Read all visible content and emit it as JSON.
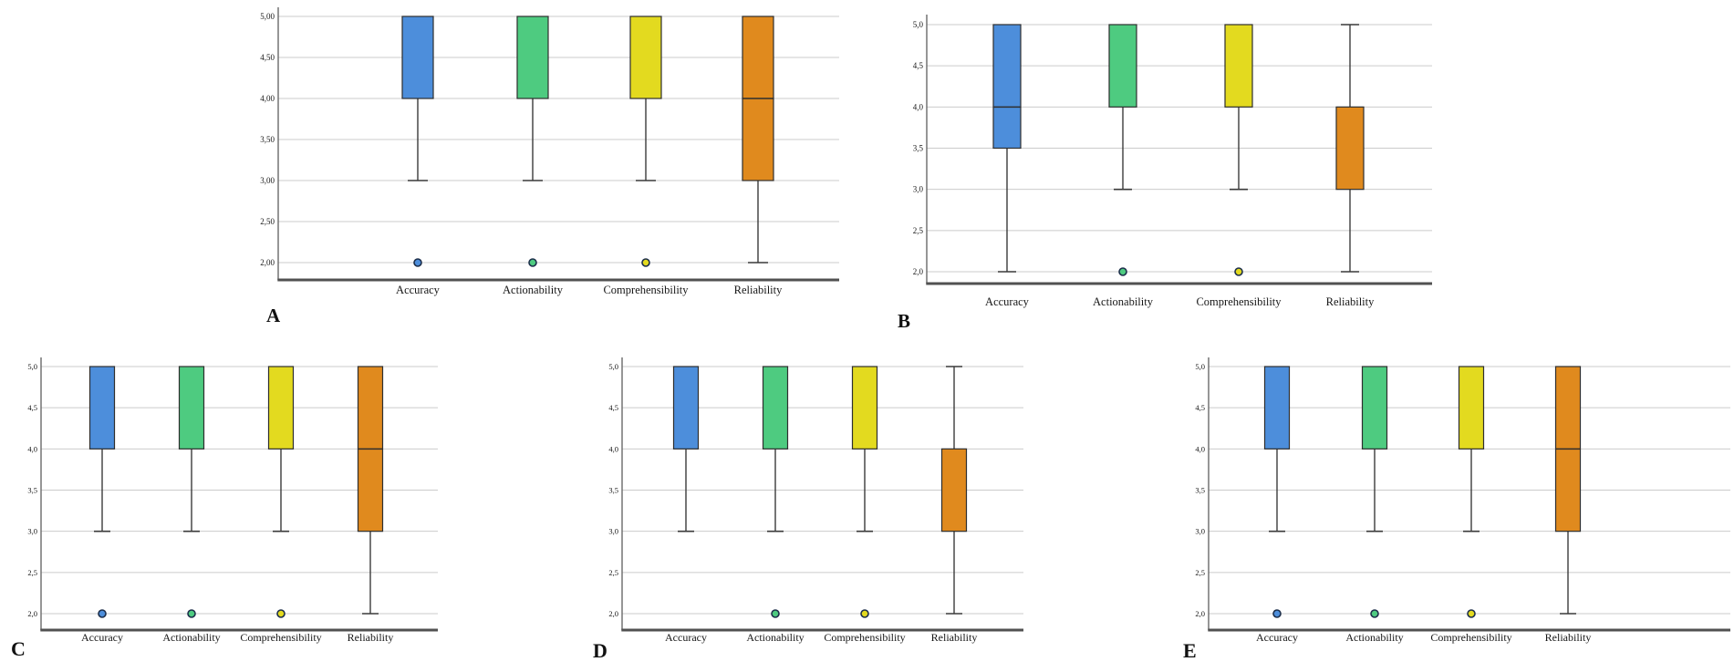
{
  "figure": {
    "description": "Five SPSS-style box plot panels (A-E) rating Accuracy, Actionability, Comprehensibility and Reliability on a 2-to-5 scale",
    "categories": [
      "Accuracy",
      "Actionability",
      "Comprehensibility",
      "Reliability"
    ],
    "colors": {
      "accuracy_blue": "#4d8edb",
      "actionability_green": "#4ecb80",
      "comprehensibility_yellow": "#e3da1f",
      "reliability_orange": "#e08a1e",
      "gridline": "#cbcbcb",
      "axis": "#515151",
      "outlier_ring": "#1c2e4a"
    }
  },
  "chart_data": [
    {
      "type": "box",
      "panel": "A",
      "title": "",
      "xlabel": "",
      "ylabel": "",
      "ylim": [
        2.0,
        5.0
      ],
      "grid": true,
      "categories": [
        "Accuracy",
        "Actionability",
        "Comprehensibility",
        "Reliability"
      ],
      "y_tick_labels": [
        "5,00",
        "4,50",
        "4,00",
        "3,50",
        "3,00",
        "2,50",
        "2,00"
      ],
      "series": [
        {
          "name": "Accuracy",
          "color": "#4d8edb",
          "q1": 4.0,
          "median": null,
          "q3": 5.0,
          "whisker_low": 3.0,
          "whisker_high": null,
          "outliers": [
            2.0
          ]
        },
        {
          "name": "Actionability",
          "color": "#4ecb80",
          "q1": 4.0,
          "median": null,
          "q3": 5.0,
          "whisker_low": 3.0,
          "whisker_high": null,
          "outliers": [
            2.0
          ]
        },
        {
          "name": "Comprehensibility",
          "color": "#e3da1f",
          "q1": 4.0,
          "median": null,
          "q3": 5.0,
          "whisker_low": 3.0,
          "whisker_high": null,
          "outliers": [
            2.0
          ]
        },
        {
          "name": "Reliability",
          "color": "#e08a1e",
          "q1": 3.0,
          "median": 4.0,
          "q3": 5.0,
          "whisker_low": 2.0,
          "whisker_high": null,
          "outliers": []
        }
      ]
    },
    {
      "type": "box",
      "panel": "B",
      "title": "",
      "xlabel": "",
      "ylabel": "",
      "ylim": [
        2.0,
        5.0
      ],
      "grid": true,
      "categories": [
        "Accuracy",
        "Actionability",
        "Comprehensibility",
        "Reliability"
      ],
      "y_tick_labels": [
        "5,0",
        "4,5",
        "4,0",
        "3,5",
        "3,0",
        "2,5",
        "2,0"
      ],
      "series": [
        {
          "name": "Accuracy",
          "color": "#4d8edb",
          "q1": 3.5,
          "median": 4.0,
          "q3": 5.0,
          "whisker_low": 2.0,
          "whisker_high": null,
          "outliers": []
        },
        {
          "name": "Actionability",
          "color": "#4ecb80",
          "q1": 4.0,
          "median": null,
          "q3": 5.0,
          "whisker_low": 3.0,
          "whisker_high": null,
          "outliers": [
            2.0
          ]
        },
        {
          "name": "Comprehensibility",
          "color": "#e3da1f",
          "q1": 4.0,
          "median": null,
          "q3": 5.0,
          "whisker_low": 3.0,
          "whisker_high": null,
          "outliers": [
            2.0
          ]
        },
        {
          "name": "Reliability",
          "color": "#e08a1e",
          "q1": 3.0,
          "median": null,
          "q3": 4.0,
          "whisker_low": 2.0,
          "whisker_high": 5.0,
          "outliers": []
        }
      ]
    },
    {
      "type": "box",
      "panel": "C",
      "title": "",
      "xlabel": "",
      "ylabel": "",
      "ylim": [
        2.0,
        5.0
      ],
      "grid": true,
      "categories": [
        "Accuracy",
        "Actionability",
        "Comprehensibility",
        "Reliability"
      ],
      "y_tick_labels": [
        "5,0",
        "4,5",
        "4,0",
        "3,5",
        "3,0",
        "2,5",
        "2,0"
      ],
      "series": [
        {
          "name": "Accuracy",
          "color": "#4d8edb",
          "q1": 4.0,
          "median": null,
          "q3": 5.0,
          "whisker_low": 3.0,
          "whisker_high": null,
          "outliers": [
            2.0
          ]
        },
        {
          "name": "Actionability",
          "color": "#4ecb80",
          "q1": 4.0,
          "median": null,
          "q3": 5.0,
          "whisker_low": 3.0,
          "whisker_high": null,
          "outliers": [
            2.0
          ]
        },
        {
          "name": "Comprehensibility",
          "color": "#e3da1f",
          "q1": 4.0,
          "median": null,
          "q3": 5.0,
          "whisker_low": 3.0,
          "whisker_high": null,
          "outliers": [
            2.0
          ]
        },
        {
          "name": "Reliability",
          "color": "#e08a1e",
          "q1": 3.0,
          "median": 4.0,
          "q3": 5.0,
          "whisker_low": 2.0,
          "whisker_high": null,
          "outliers": []
        }
      ]
    },
    {
      "type": "box",
      "panel": "D",
      "title": "",
      "xlabel": "",
      "ylabel": "",
      "ylim": [
        2.0,
        5.0
      ],
      "grid": true,
      "categories": [
        "Accuracy",
        "Actionability",
        "Comprehensibility",
        "Reliability"
      ],
      "y_tick_labels": [
        "5,0",
        "4,5",
        "4,0",
        "3,5",
        "3,0",
        "2,5",
        "2,0"
      ],
      "series": [
        {
          "name": "Accuracy",
          "color": "#4d8edb",
          "q1": 4.0,
          "median": null,
          "q3": 5.0,
          "whisker_low": 3.0,
          "whisker_high": null,
          "outliers": []
        },
        {
          "name": "Actionability",
          "color": "#4ecb80",
          "q1": 4.0,
          "median": null,
          "q3": 5.0,
          "whisker_low": 3.0,
          "whisker_high": null,
          "outliers": [
            2.0
          ]
        },
        {
          "name": "Comprehensibility",
          "color": "#e3da1f",
          "q1": 4.0,
          "median": null,
          "q3": 5.0,
          "whisker_low": 3.0,
          "whisker_high": null,
          "outliers": [
            2.0
          ]
        },
        {
          "name": "Reliability",
          "color": "#e08a1e",
          "q1": 3.0,
          "median": null,
          "q3": 4.0,
          "whisker_low": 2.0,
          "whisker_high": 5.0,
          "outliers": []
        }
      ]
    },
    {
      "type": "box",
      "panel": "E",
      "title": "",
      "xlabel": "",
      "ylabel": "",
      "ylim": [
        2.0,
        5.0
      ],
      "grid": true,
      "categories": [
        "Accuracy",
        "Actionability",
        "Comprehensibility",
        "Reliability"
      ],
      "y_tick_labels": [
        "5,0",
        "4,5",
        "4,0",
        "3,5",
        "3,0",
        "2,5",
        "2,0"
      ],
      "series": [
        {
          "name": "Accuracy",
          "color": "#4d8edb",
          "q1": 4.0,
          "median": null,
          "q3": 5.0,
          "whisker_low": 3.0,
          "whisker_high": null,
          "outliers": [
            2.0
          ]
        },
        {
          "name": "Actionability",
          "color": "#4ecb80",
          "q1": 4.0,
          "median": null,
          "q3": 5.0,
          "whisker_low": 3.0,
          "whisker_high": null,
          "outliers": [
            2.0
          ]
        },
        {
          "name": "Comprehensibility",
          "color": "#e3da1f",
          "q1": 4.0,
          "median": null,
          "q3": 5.0,
          "whisker_low": 3.0,
          "whisker_high": null,
          "outliers": [
            2.0
          ]
        },
        {
          "name": "Reliability",
          "color": "#e08a1e",
          "q1": 3.0,
          "median": 4.0,
          "q3": 5.0,
          "whisker_low": 2.0,
          "whisker_high": null,
          "outliers": []
        }
      ]
    }
  ]
}
